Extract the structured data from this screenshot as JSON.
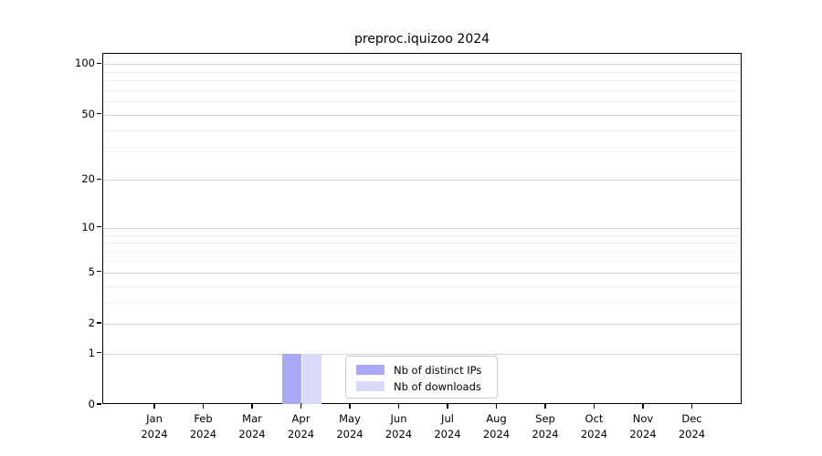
{
  "title": "preproc.iquizoo 2024",
  "chart_data": {
    "type": "bar",
    "title": "preproc.iquizoo 2024",
    "categories": [
      "Jan",
      "Feb",
      "Mar",
      "Apr",
      "May",
      "Jun",
      "Jul",
      "Aug",
      "Sep",
      "Oct",
      "Nov",
      "Dec"
    ],
    "category_year": "2024",
    "series": [
      {
        "name": "Nb of distinct IPs",
        "color": "#a9a9f7",
        "values": [
          0,
          0,
          0,
          1,
          0,
          0,
          0,
          0,
          0,
          0,
          0,
          0
        ]
      },
      {
        "name": "Nb of downloads",
        "color": "#d9d9f9",
        "values": [
          0,
          0,
          0,
          1,
          0,
          0,
          0,
          0,
          0,
          0,
          0,
          0
        ]
      }
    ],
    "yscale": "log1p",
    "ylim": [
      0,
      115
    ],
    "y_major_ticks": [
      100,
      50,
      20,
      10,
      5,
      2,
      1,
      0
    ],
    "y_minor_gridlines": [
      90,
      80,
      70,
      60,
      40,
      30,
      9,
      8,
      7,
      6,
      4,
      3
    ],
    "grid": "on",
    "legend_position": "lower center",
    "colors": {
      "axis": "#000000",
      "grid_major": "#d2d2d2",
      "grid_minor": "#ededed",
      "background": "#ffffff"
    }
  }
}
